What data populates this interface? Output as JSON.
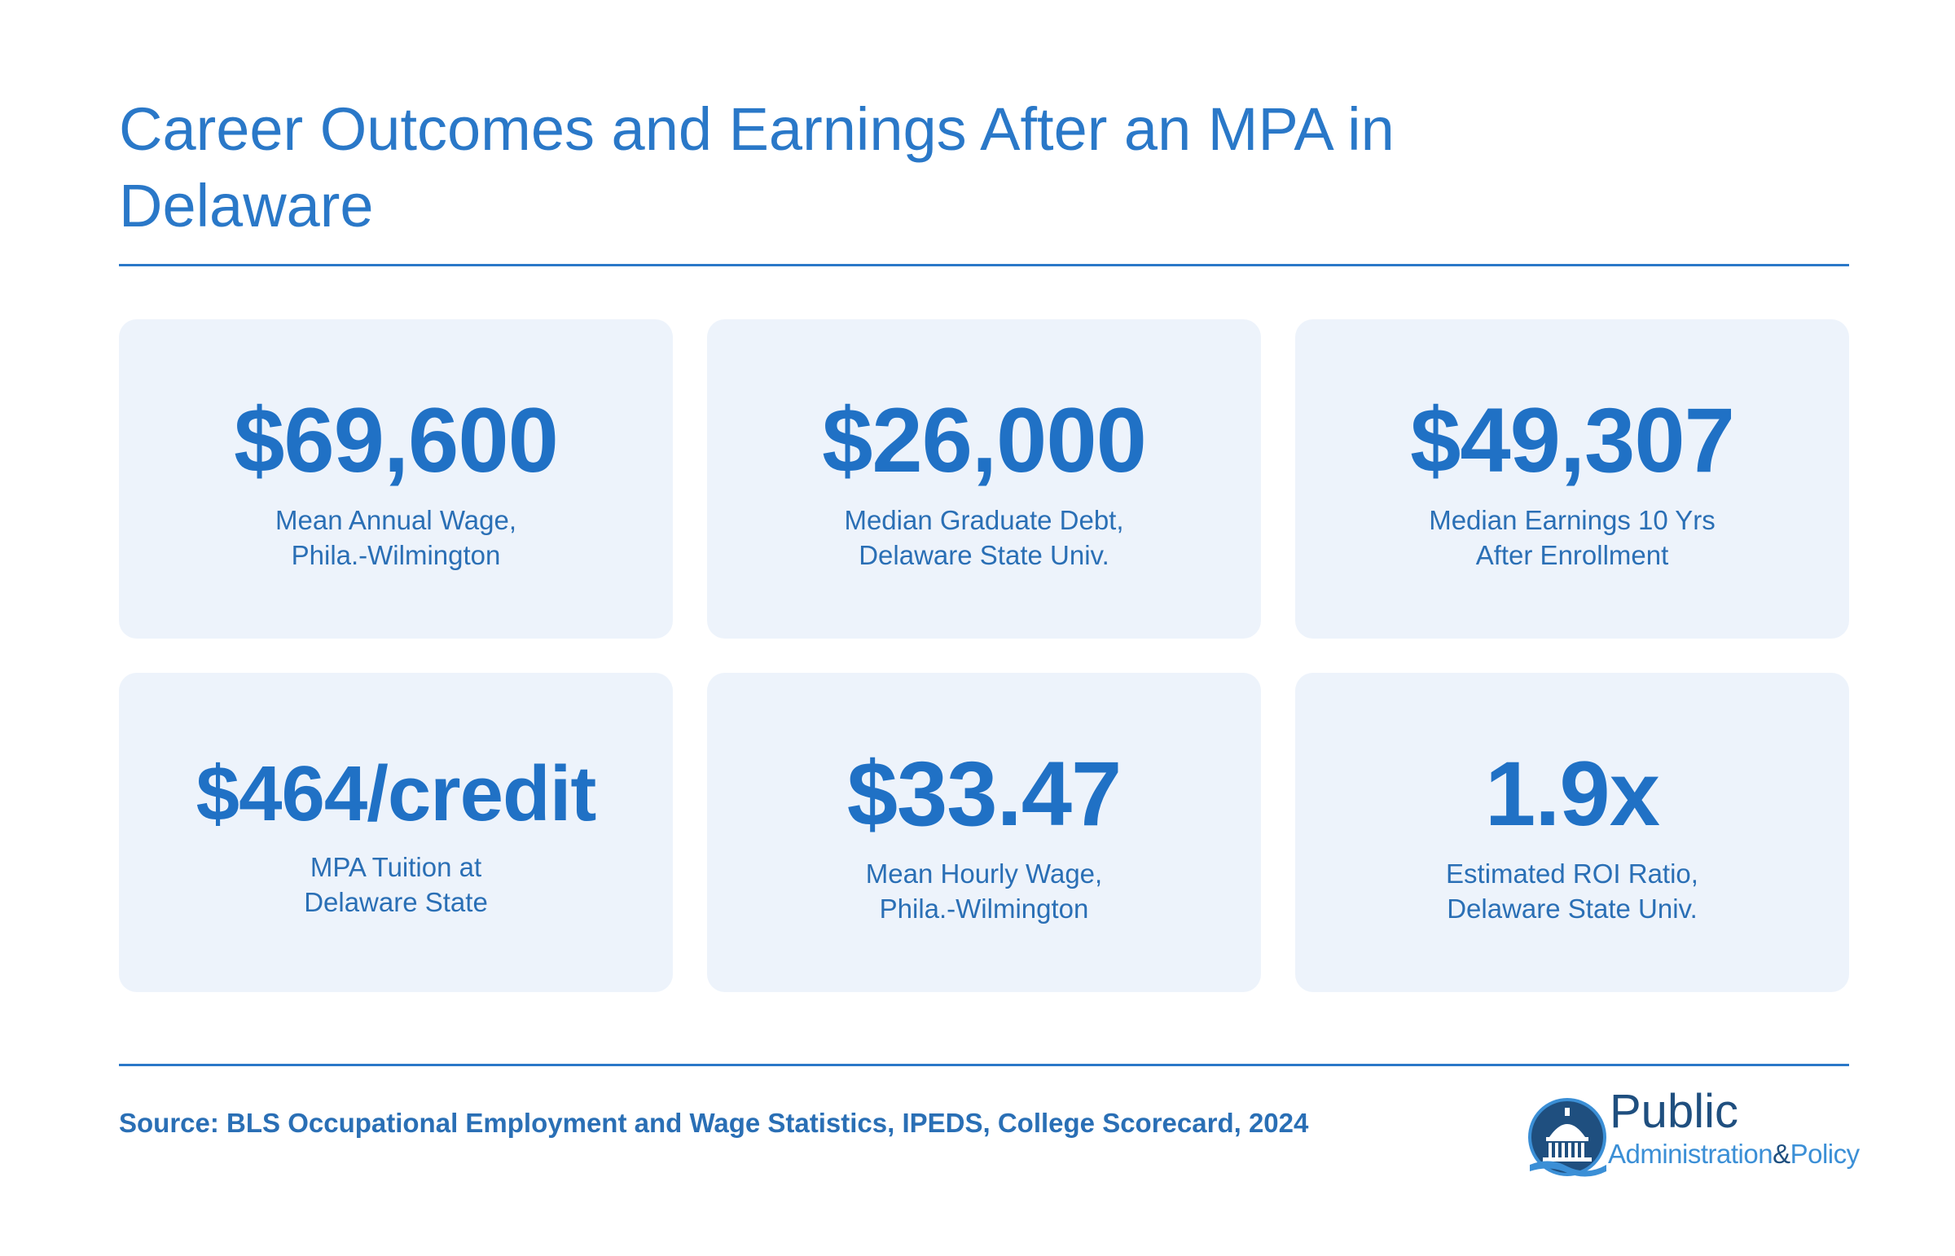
{
  "title": "Career Outcomes and Earnings After an MPA in Delaware",
  "cards": [
    {
      "value": "$69,600",
      "label_line1": "Mean Annual Wage,",
      "label_line2": "Phila.-Wilmington"
    },
    {
      "value": "$26,000",
      "label_line1": "Median Graduate Debt,",
      "label_line2": "Delaware State Univ."
    },
    {
      "value": "$49,307",
      "label_line1": "Median Earnings 10 Yrs",
      "label_line2": "After Enrollment"
    },
    {
      "value": "$464/credit",
      "label_line1": "MPA Tuition at",
      "label_line2": "Delaware State"
    },
    {
      "value": "$33.47",
      "label_line1": "Mean Hourly Wage,",
      "label_line2": "Phila.-Wilmington"
    },
    {
      "value": "1.9x",
      "label_line1": "Estimated ROI Ratio,",
      "label_line2": "Delaware State Univ."
    }
  ],
  "source": "Source: BLS Occupational Employment and Wage Statistics, IPEDS, College Scorecard, 2024",
  "logo": {
    "line1": "Public",
    "line2a": "Administration",
    "amp": "&",
    "line2b": "Policy",
    "icon": "capitol-dome-icon"
  },
  "colors": {
    "accent": "#2a78c8",
    "value": "#2071c5",
    "card_bg": "#edf3fb",
    "logo_dark": "#1f4f7f",
    "logo_light": "#3b8fd6"
  }
}
